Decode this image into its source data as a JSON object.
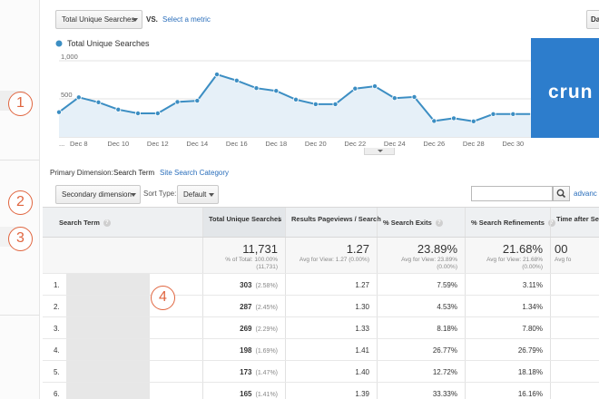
{
  "toolbar": {
    "metric_select": "Total Unique Searches",
    "vs_label": "VS.",
    "select_metric_link": "Select a metric",
    "right_button": "Da"
  },
  "chart_data": {
    "type": "line",
    "series": [
      {
        "name": "Total Unique Searches",
        "values": [
          325,
          520,
          455,
          360,
          310,
          310,
          460,
          475,
          820,
          740,
          640,
          605,
          490,
          430,
          430,
          635,
          665,
          510,
          525,
          210,
          245,
          205,
          300,
          300,
          300
        ]
      }
    ],
    "x_tick_labels": [
      "...",
      "Dec 8",
      "Dec 10",
      "Dec 12",
      "Dec 14",
      "Dec 16",
      "Dec 18",
      "Dec 20",
      "Dec 22",
      "Dec 24",
      "Dec 26",
      "Dec 28",
      "Dec 30"
    ],
    "y_tick_labels": [
      "1,000",
      "500"
    ],
    "ylim": [
      0,
      1000
    ],
    "color": "#3c8ec3"
  },
  "overlay": {
    "brand_text": "crun"
  },
  "dimension": {
    "label": "Primary Dimension:",
    "active": "Search Term",
    "other": "Site Search Category"
  },
  "controls": {
    "secondary": "Secondary dimension",
    "sort_label": "Sort Type:",
    "sort_value": "Default",
    "advanced": "advanc"
  },
  "callouts": [
    "1",
    "2",
    "3",
    "4"
  ],
  "table": {
    "headers": [
      "Search Term",
      "Total Unique Searches",
      "Results Pageviews / Search",
      "% Search Exits",
      "% Search Refinements",
      "Time after Sea"
    ],
    "totals": {
      "searches": "11,731",
      "searches_sub": "% of Total: 100.00% (11,731)",
      "pageviews": "1.27",
      "pageviews_sub": "Avg for View: 1.27 (0.00%)",
      "exits": "23.89%",
      "exits_sub": "Avg for View: 23.89% (0.00%)",
      "refinements": "21.68%",
      "refinements_sub": "Avg for View: 21.68% (0.00%)",
      "time": "00",
      "time_sub": "Avg fo"
    },
    "rows": [
      {
        "idx": "1.",
        "searches": "303",
        "pct": "(2.58%)",
        "pv": "1.27",
        "exits": "7.59%",
        "ref": "3.11%"
      },
      {
        "idx": "2.",
        "searches": "287",
        "pct": "(2.45%)",
        "pv": "1.30",
        "exits": "4.53%",
        "ref": "1.34%"
      },
      {
        "idx": "3.",
        "searches": "269",
        "pct": "(2.29%)",
        "pv": "1.33",
        "exits": "8.18%",
        "ref": "7.80%"
      },
      {
        "idx": "4.",
        "searches": "198",
        "pct": "(1.69%)",
        "pv": "1.41",
        "exits": "26.77%",
        "ref": "26.79%"
      },
      {
        "idx": "5.",
        "searches": "173",
        "pct": "(1.47%)",
        "pv": "1.40",
        "exits": "12.72%",
        "ref": "18.18%"
      },
      {
        "idx": "6.",
        "searches": "165",
        "pct": "(1.41%)",
        "pv": "1.39",
        "exits": "33.33%",
        "ref": "16.16%"
      }
    ]
  }
}
